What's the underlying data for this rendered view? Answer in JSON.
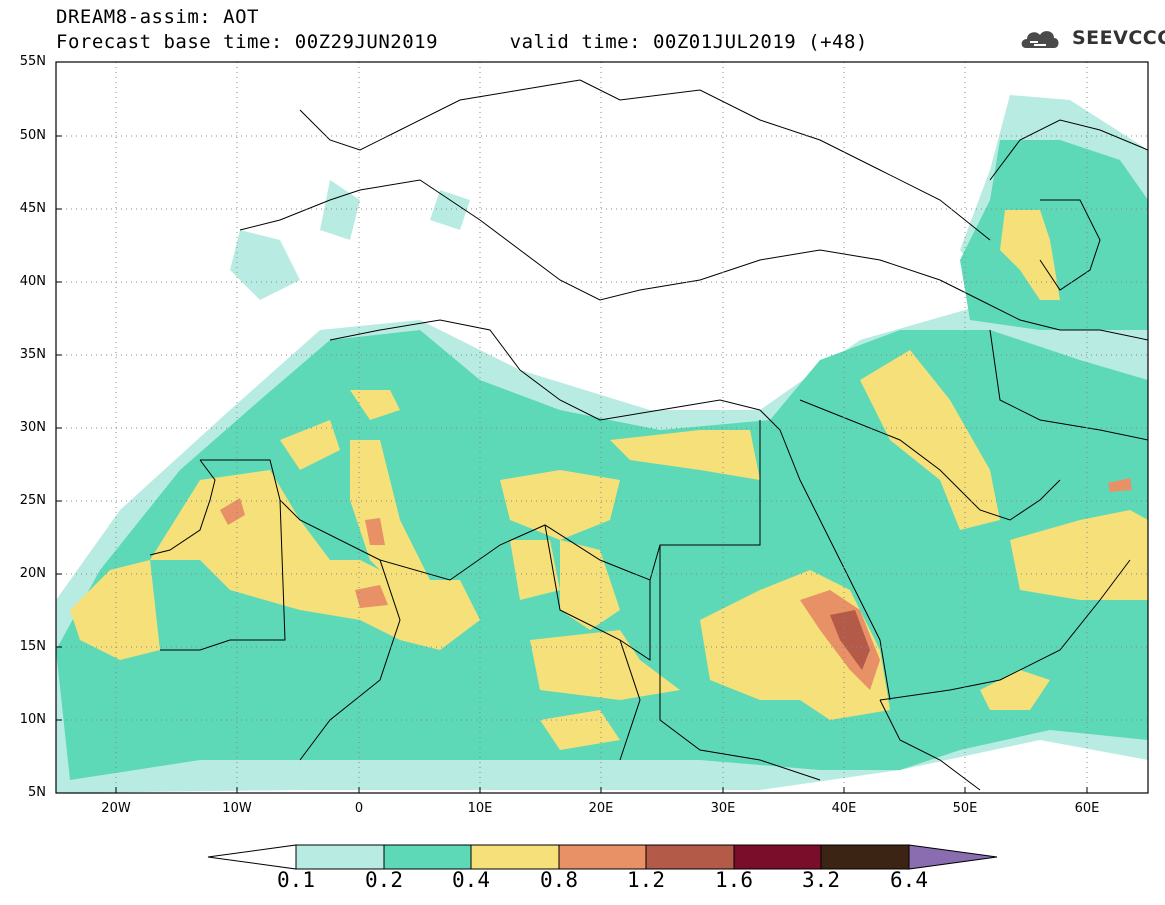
{
  "title_line1": "DREAM8-assim: AOT",
  "title_line2": "Forecast base time: 00Z29JUN2019      valid time: 00Z01JUL2019 (+48)",
  "logo_text": "SEEVCCC",
  "lat_labels": [
    "55N",
    "50N",
    "45N",
    "40N",
    "35N",
    "30N",
    "25N",
    "20N",
    "15N",
    "10N",
    "5N"
  ],
  "lon_labels": [
    "20W",
    "10W",
    "0",
    "10E",
    "20E",
    "30E",
    "40E",
    "50E",
    "60E"
  ],
  "colorbar": {
    "labels": [
      "0.1",
      "0.2",
      "0.4",
      "0.8",
      "1.2",
      "1.6",
      "3.2",
      "6.4"
    ],
    "colors": [
      "#ffffff",
      "#b8ece2",
      "#5ed9b7",
      "#f5e07a",
      "#e89066",
      "#b45a48",
      "#7a0e2a",
      "#3b2414",
      "#8a6cb0"
    ]
  }
}
